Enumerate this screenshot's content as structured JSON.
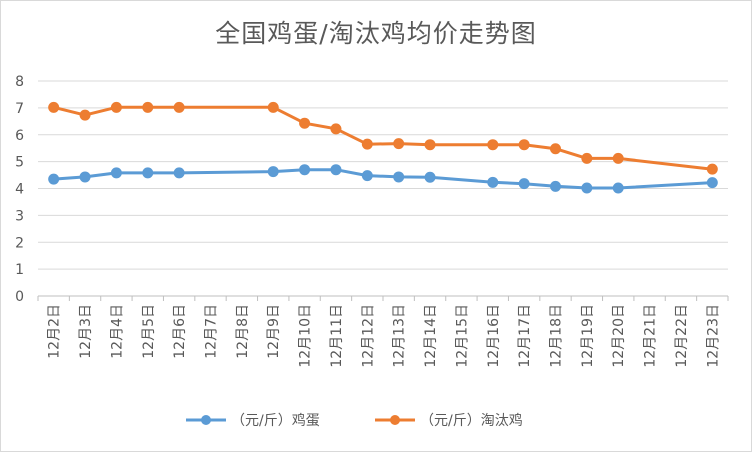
{
  "chart_data": {
    "type": "line",
    "title": "全国鸡蛋/淘汰鸡均价走势图",
    "categories": [
      "12月2日",
      "12月3日",
      "12月4日",
      "12月5日",
      "12月6日",
      "12月7日",
      "12月8日",
      "12月9日",
      "12月10日",
      "12月11日",
      "12月12日",
      "12月13日",
      "12月14日",
      "12月15日",
      "12月16日",
      "12月17日",
      "12月18日",
      "12月19日",
      "12月20日",
      "12月21日",
      "12月22日",
      "12月23日"
    ],
    "yticks": [
      "0",
      "1",
      "2",
      "3",
      "4",
      "5",
      "6",
      "7",
      "8"
    ],
    "ylim": [
      0,
      8
    ],
    "grid": true,
    "legend_position": "bottom",
    "series": [
      {
        "name": "（元/斤）鸡蛋",
        "color": "#5b9bd5",
        "values": [
          4.35,
          4.43,
          4.58,
          4.58,
          4.58,
          null,
          null,
          4.63,
          4.7,
          4.7,
          4.48,
          4.43,
          4.42,
          null,
          4.23,
          4.18,
          4.08,
          4.02,
          4.02,
          null,
          null,
          4.22
        ]
      },
      {
        "name": "（元/斤）淘汰鸡",
        "color": "#ed7d31",
        "values": [
          7.02,
          6.73,
          7.02,
          7.02,
          7.02,
          null,
          null,
          7.02,
          6.43,
          6.22,
          5.65,
          5.67,
          5.63,
          null,
          5.63,
          5.63,
          5.48,
          5.12,
          5.12,
          null,
          null,
          4.72
        ]
      }
    ]
  }
}
